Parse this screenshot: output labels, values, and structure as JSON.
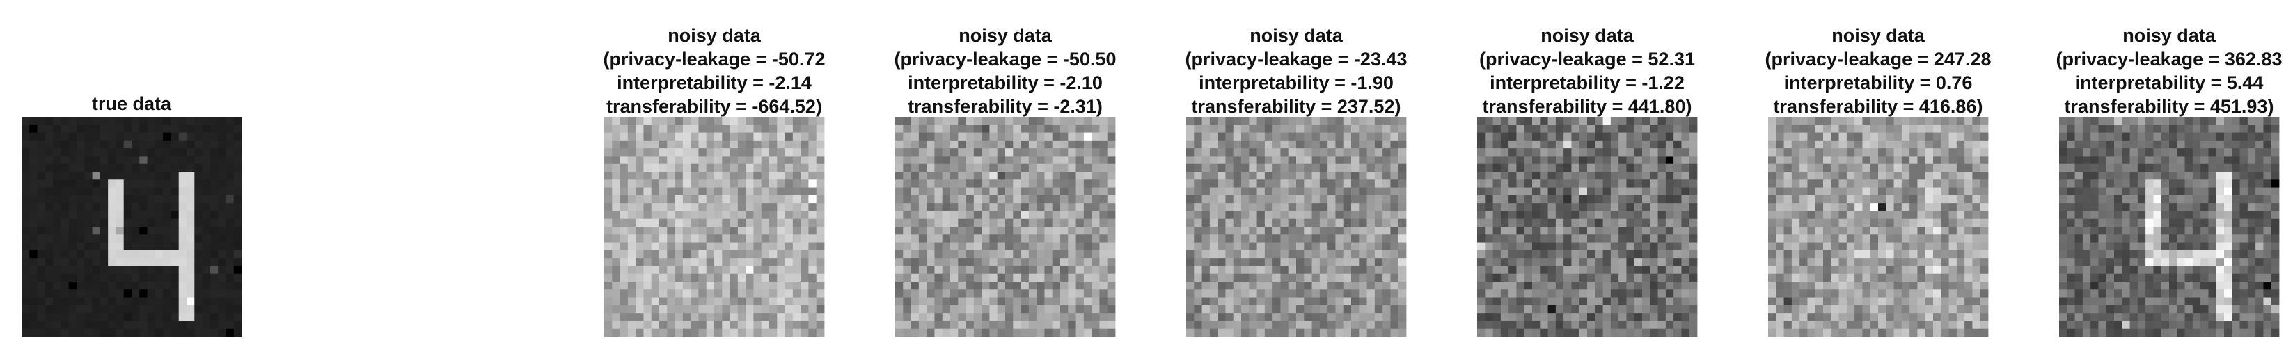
{
  "true_panel": {
    "title": "true data"
  },
  "noisy_panels": [
    {
      "lines": [
        "noisy data",
        "(privacy-leakage = -50.72",
        "interpretability = -2.14",
        "transferability = -664.52)"
      ]
    },
    {
      "lines": [
        "noisy data",
        "(privacy-leakage = -50.50",
        "interpretability = -2.10",
        "transferability = -2.31)"
      ]
    },
    {
      "lines": [
        "noisy data",
        "(privacy-leakage = -23.43",
        "interpretability = -1.90",
        "transferability = 237.52)"
      ]
    },
    {
      "lines": [
        "noisy data",
        "(privacy-leakage = 52.31",
        "interpretability = -1.22",
        "transferability = 441.80)"
      ]
    },
    {
      "lines": [
        "noisy data",
        "(privacy-leakage = 247.28",
        "interpretability = 0.76",
        "transferability = 416.86)"
      ]
    },
    {
      "lines": [
        "noisy data",
        "(privacy-leakage = 362.83",
        "interpretability = 5.44",
        "transferability = 451.93)"
      ]
    }
  ]
}
